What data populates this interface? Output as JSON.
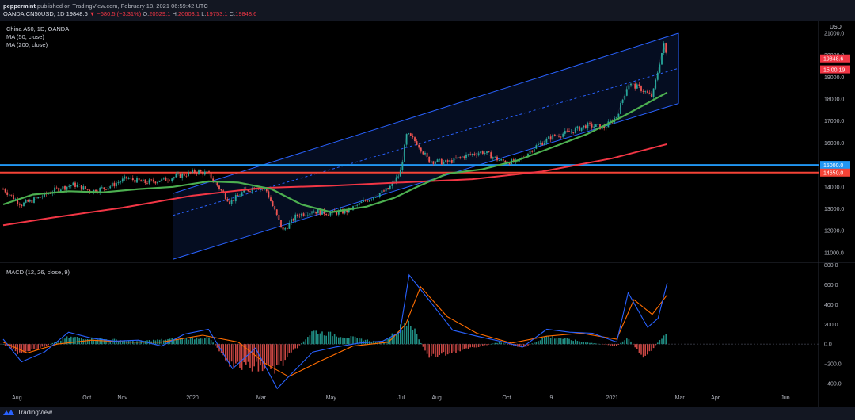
{
  "header": {
    "author": "peppermint",
    "published_text": "published on TradingView.com, February 18, 2021 06:59:42 UTC",
    "symbol": "OANDA:CN50USD, 1D",
    "last": "19848.6",
    "change": "▼ −680.5 (−3.31%)",
    "o_label": "O:",
    "o_val": "20529.1",
    "h_label": "H:",
    "h_val": "20603.1",
    "l_label": "L:",
    "l_val": "19753.1",
    "c_label": "C:",
    "c_val": "19848.6"
  },
  "legend": {
    "instrument": "China A50, 1D, OANDA",
    "ma50": "MA (50, close)",
    "ma200": "MA (200, close)",
    "macd": "MACD (12, 26, close, 9)"
  },
  "footer": {
    "brand": "TradingView"
  },
  "colors": {
    "up": "#26a69a",
    "down": "#ef5350",
    "ma50": "#4caf50",
    "ma200": "#f23645",
    "resistance_blue": "#2196f3",
    "support_red": "#f44336",
    "channel": "#2962ff",
    "macd_line": "#2962ff",
    "signal_line": "#ff6d00"
  },
  "chart_data": [
    {
      "type": "line",
      "title": "China A50, 1D, OANDA",
      "currency_label": "USD",
      "x_ticks": [
        "Aug",
        "Oct",
        "Nov",
        "2020",
        "Mar",
        "May",
        "Jul",
        "Aug",
        "Oct",
        "9",
        "2021",
        "Mar",
        "Apr",
        "Jun"
      ],
      "x_tick_dates": [
        "2019-08-01",
        "2019-10-01",
        "2019-11-01",
        "2020-01-01",
        "2020-03-01",
        "2020-05-01",
        "2020-07-01",
        "2020-08-01",
        "2020-10-01",
        "2020-11-09",
        "2021-01-01",
        "2021-03-01",
        "2021-04-01",
        "2021-06-01"
      ],
      "x_range": [
        "2019-07-20",
        "2021-06-30"
      ],
      "y_ticks": [
        11000,
        12000,
        13000,
        14000,
        15000,
        16000,
        17000,
        18000,
        19000,
        20000,
        21000
      ],
      "ylim": [
        10600,
        21500
      ],
      "price_badges": [
        {
          "label": "19848.6",
          "value": 19848.6,
          "color": "#f23645"
        },
        {
          "label": "15:00:19",
          "value": 19350,
          "color": "#f23645"
        },
        {
          "label": "15000.0",
          "value": 15000,
          "color": "#2196f3"
        },
        {
          "label": "14650.0",
          "value": 14650,
          "color": "#f44336"
        }
      ],
      "horizontal_lines": [
        {
          "name": "resistance",
          "value": 15000,
          "color": "#2196f3"
        },
        {
          "name": "support",
          "value": 14650,
          "color": "#f44336"
        }
      ],
      "channel": {
        "start": "2019-12-15",
        "end": "2021-02-28",
        "upper": [
          13700,
          21000
        ],
        "mid": [
          12700,
          19400
        ],
        "lower": [
          10700,
          17800
        ]
      },
      "series": [
        {
          "name": "MA (50, close)",
          "color": "#4caf50",
          "x": [
            "2019-07-20",
            "2019-08-15",
            "2019-09-15",
            "2019-10-15",
            "2019-11-15",
            "2019-12-15",
            "2020-01-15",
            "2020-02-10",
            "2020-03-10",
            "2020-04-05",
            "2020-05-01",
            "2020-06-01",
            "2020-06-25",
            "2020-07-15",
            "2020-08-10",
            "2020-09-10",
            "2020-10-10",
            "2020-11-10",
            "2020-12-10",
            "2021-01-10",
            "2021-02-18"
          ],
          "values": [
            13200,
            13650,
            13800,
            13750,
            13900,
            14000,
            14250,
            14200,
            13900,
            13200,
            12850,
            13100,
            13500,
            14000,
            14600,
            14800,
            15200,
            15800,
            16400,
            17200,
            18300
          ]
        },
        {
          "name": "MA (200, close)",
          "color": "#f23645",
          "x": [
            "2019-07-20",
            "2019-09-01",
            "2019-11-01",
            "2020-01-01",
            "2020-03-01",
            "2020-05-01",
            "2020-07-01",
            "2020-09-01",
            "2020-11-01",
            "2021-01-01",
            "2021-02-18"
          ],
          "values": [
            12250,
            12600,
            13050,
            13600,
            13950,
            14050,
            14200,
            14350,
            14700,
            15300,
            15950
          ]
        },
        {
          "name": "China A50 close",
          "color": "#26a69a",
          "x": [
            "2019-07-20",
            "2019-08-05",
            "2019-08-20",
            "2019-09-05",
            "2019-09-20",
            "2019-10-05",
            "2019-10-20",
            "2019-11-05",
            "2019-11-20",
            "2019-12-05",
            "2019-12-20",
            "2020-01-05",
            "2020-01-15",
            "2020-01-25",
            "2020-02-03",
            "2020-02-15",
            "2020-02-25",
            "2020-03-05",
            "2020-03-20",
            "2020-04-01",
            "2020-04-15",
            "2020-05-01",
            "2020-05-15",
            "2020-06-01",
            "2020-06-20",
            "2020-06-30",
            "2020-07-06",
            "2020-07-15",
            "2020-07-25",
            "2020-08-10",
            "2020-08-25",
            "2020-09-10",
            "2020-09-25",
            "2020-10-10",
            "2020-10-25",
            "2020-11-10",
            "2020-11-25",
            "2020-12-10",
            "2020-12-25",
            "2021-01-05",
            "2021-01-15",
            "2021-01-25",
            "2021-02-05",
            "2021-02-15",
            "2021-02-18"
          ],
          "values": [
            13900,
            13200,
            13500,
            13900,
            14100,
            13800,
            14000,
            14400,
            14200,
            14300,
            14500,
            14700,
            14600,
            13900,
            13300,
            13800,
            14000,
            13900,
            12000,
            12700,
            12900,
            12800,
            12900,
            13400,
            13900,
            14600,
            16400,
            16000,
            15200,
            15100,
            15400,
            15600,
            15200,
            15100,
            15800,
            16300,
            16500,
            16800,
            16700,
            17200,
            18700,
            18500,
            18100,
            20500,
            19848.6
          ]
        }
      ]
    },
    {
      "type": "bar",
      "title": "MACD (12, 26, close, 9)",
      "y_ticks": [
        -400,
        -200,
        0,
        200,
        400,
        600,
        800
      ],
      "ylim": [
        -480,
        820
      ],
      "series": [
        {
          "name": "MACD",
          "color": "#2962ff",
          "x": [
            "2019-07-20",
            "2019-08-05",
            "2019-08-25",
            "2019-09-15",
            "2019-10-05",
            "2019-10-25",
            "2019-11-15",
            "2019-12-05",
            "2019-12-25",
            "2020-01-15",
            "2020-02-05",
            "2020-02-25",
            "2020-03-15",
            "2020-03-25",
            "2020-04-15",
            "2020-05-05",
            "2020-05-25",
            "2020-06-15",
            "2020-06-30",
            "2020-07-08",
            "2020-07-25",
            "2020-08-15",
            "2020-09-05",
            "2020-09-25",
            "2020-10-15",
            "2020-11-05",
            "2020-11-25",
            "2020-12-15",
            "2021-01-05",
            "2021-01-15",
            "2021-02-01",
            "2021-02-10",
            "2021-02-18"
          ],
          "values": [
            50,
            -180,
            -80,
            120,
            60,
            30,
            40,
            -20,
            100,
            150,
            -250,
            -40,
            -450,
            -330,
            -80,
            -30,
            10,
            30,
            120,
            700,
            450,
            140,
            80,
            30,
            -30,
            150,
            120,
            110,
            20,
            520,
            170,
            260,
            620
          ]
        },
        {
          "name": "Signal",
          "color": "#ff6d00",
          "x": [
            "2019-07-20",
            "2019-08-10",
            "2019-09-05",
            "2019-10-05",
            "2019-11-05",
            "2019-12-05",
            "2020-01-10",
            "2020-02-10",
            "2020-03-05",
            "2020-03-25",
            "2020-04-20",
            "2020-05-20",
            "2020-06-20",
            "2020-07-05",
            "2020-07-18",
            "2020-08-10",
            "2020-09-05",
            "2020-10-05",
            "2020-11-05",
            "2020-12-05",
            "2021-01-05",
            "2021-01-20",
            "2021-02-05",
            "2021-02-18"
          ],
          "values": [
            20,
            -90,
            0,
            40,
            20,
            20,
            90,
            20,
            -200,
            -330,
            -180,
            -20,
            20,
            200,
            580,
            280,
            110,
            10,
            80,
            110,
            50,
            450,
            300,
            500
          ]
        },
        {
          "name": "Histogram",
          "color": "#26a69a",
          "x": [
            "2019-08-05",
            "2019-09-15",
            "2019-11-15",
            "2020-01-15",
            "2020-02-05",
            "2020-03-15",
            "2020-04-15",
            "2020-06-15",
            "2020-07-08",
            "2020-07-25",
            "2020-08-20",
            "2020-09-25",
            "2020-10-15",
            "2020-11-05",
            "2020-12-15",
            "2021-01-05",
            "2021-01-15",
            "2021-01-28",
            "2021-02-18"
          ],
          "values": [
            -110,
            70,
            30,
            70,
            -220,
            -250,
            130,
            15,
            240,
            -140,
            -70,
            20,
            -40,
            80,
            10,
            -20,
            70,
            -150,
            120
          ]
        }
      ]
    }
  ]
}
